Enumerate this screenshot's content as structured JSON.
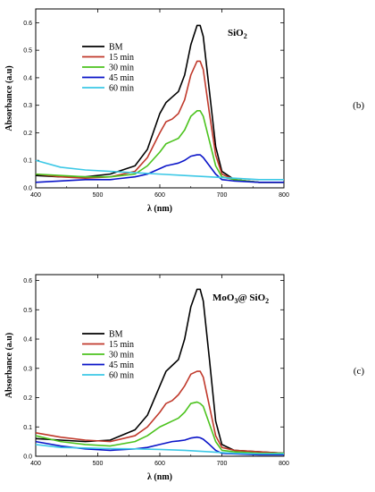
{
  "chart_data": [
    {
      "type": "line",
      "panel_label": "(b)",
      "title": "SiO",
      "title_sub": "2",
      "xlabel": "λ (nm)",
      "ylabel": "Absorbance (a.u)",
      "xlim": [
        400,
        800
      ],
      "ylim": [
        0,
        0.65
      ],
      "xticks": [
        400,
        500,
        600,
        700,
        800
      ],
      "yticks": [
        0.0,
        0.1,
        0.2,
        0.3,
        0.4,
        0.5,
        0.6
      ],
      "ytick_labels": [
        "0.0",
        "0.1",
        "0.2",
        "0.3",
        "0.4",
        "0.5",
        "0.6"
      ],
      "legend_position": "top-left",
      "series": [
        {
          "name": "BM",
          "color": "#000000",
          "x": [
            400,
            440,
            480,
            520,
            560,
            580,
            600,
            610,
            620,
            630,
            640,
            650,
            660,
            665,
            670,
            680,
            690,
            700,
            720,
            760,
            800
          ],
          "y": [
            0.045,
            0.04,
            0.04,
            0.05,
            0.08,
            0.14,
            0.27,
            0.31,
            0.33,
            0.35,
            0.41,
            0.52,
            0.59,
            0.59,
            0.55,
            0.35,
            0.15,
            0.06,
            0.03,
            0.02,
            0.02
          ]
        },
        {
          "name": "15 min",
          "color": "#c0392b",
          "x": [
            400,
            440,
            480,
            520,
            560,
            580,
            600,
            610,
            620,
            630,
            640,
            650,
            660,
            665,
            670,
            680,
            690,
            700,
            720,
            760,
            800
          ],
          "y": [
            0.05,
            0.04,
            0.035,
            0.04,
            0.06,
            0.11,
            0.2,
            0.24,
            0.25,
            0.27,
            0.32,
            0.41,
            0.46,
            0.46,
            0.43,
            0.27,
            0.12,
            0.05,
            0.03,
            0.02,
            0.02
          ]
        },
        {
          "name": "30 min",
          "color": "#4cc31e",
          "x": [
            400,
            440,
            480,
            520,
            560,
            580,
            600,
            610,
            620,
            630,
            640,
            650,
            660,
            665,
            670,
            680,
            690,
            700,
            720,
            760,
            800
          ],
          "y": [
            0.05,
            0.045,
            0.04,
            0.04,
            0.05,
            0.08,
            0.13,
            0.16,
            0.17,
            0.18,
            0.21,
            0.26,
            0.28,
            0.28,
            0.26,
            0.17,
            0.08,
            0.04,
            0.03,
            0.02,
            0.02
          ]
        },
        {
          "name": "45 min",
          "color": "#0a14c8",
          "x": [
            400,
            440,
            480,
            520,
            560,
            580,
            600,
            610,
            620,
            630,
            640,
            650,
            660,
            665,
            670,
            680,
            690,
            700,
            720,
            760,
            800
          ],
          "y": [
            0.02,
            0.025,
            0.03,
            0.03,
            0.04,
            0.05,
            0.07,
            0.08,
            0.085,
            0.09,
            0.1,
            0.115,
            0.12,
            0.12,
            0.11,
            0.08,
            0.05,
            0.03,
            0.025,
            0.02,
            0.02
          ]
        },
        {
          "name": "60 min",
          "color": "#3cc8e6",
          "x": [
            400,
            440,
            480,
            520,
            560,
            600,
            640,
            680,
            720,
            760,
            800
          ],
          "y": [
            0.1,
            0.075,
            0.065,
            0.06,
            0.055,
            0.05,
            0.045,
            0.04,
            0.035,
            0.03,
            0.03
          ]
        }
      ]
    },
    {
      "type": "line",
      "panel_label": "(c)",
      "title": "MoO",
      "title_sub": "3",
      "title_tail": "@ SiO",
      "title_tail_sub": "2",
      "xlabel": "λ (nm)",
      "ylabel": "Absorbance (a.u)",
      "xlim": [
        400,
        800
      ],
      "ylim": [
        0,
        0.62
      ],
      "xticks": [
        400,
        500,
        600,
        700,
        800
      ],
      "yticks": [
        0.0,
        0.1,
        0.2,
        0.3,
        0.4,
        0.5,
        0.6
      ],
      "ytick_labels": [
        "0.0",
        "0.1",
        "0.2",
        "0.3",
        "0.4",
        "0.5",
        "0.6"
      ],
      "legend_position": "center-left",
      "series": [
        {
          "name": "BM",
          "color": "#000000",
          "x": [
            400,
            440,
            480,
            520,
            560,
            580,
            600,
            610,
            620,
            630,
            640,
            650,
            660,
            665,
            670,
            680,
            690,
            700,
            720,
            760,
            800
          ],
          "y": [
            0.06,
            0.055,
            0.05,
            0.055,
            0.09,
            0.14,
            0.24,
            0.29,
            0.31,
            0.33,
            0.4,
            0.51,
            0.57,
            0.57,
            0.53,
            0.33,
            0.12,
            0.04,
            0.02,
            0.015,
            0.01
          ]
        },
        {
          "name": "15 min",
          "color": "#c0392b",
          "x": [
            400,
            440,
            480,
            520,
            560,
            580,
            600,
            610,
            620,
            630,
            640,
            650,
            660,
            665,
            670,
            680,
            690,
            700,
            720,
            760,
            800
          ],
          "y": [
            0.08,
            0.065,
            0.055,
            0.05,
            0.07,
            0.1,
            0.15,
            0.18,
            0.19,
            0.21,
            0.24,
            0.28,
            0.29,
            0.29,
            0.27,
            0.17,
            0.07,
            0.03,
            0.02,
            0.015,
            0.01
          ]
        },
        {
          "name": "30 min",
          "color": "#4cc31e",
          "x": [
            400,
            440,
            480,
            520,
            560,
            580,
            600,
            610,
            620,
            630,
            640,
            650,
            660,
            665,
            670,
            680,
            690,
            700,
            720,
            760,
            800
          ],
          "y": [
            0.07,
            0.05,
            0.04,
            0.035,
            0.05,
            0.07,
            0.1,
            0.11,
            0.12,
            0.13,
            0.15,
            0.18,
            0.185,
            0.18,
            0.17,
            0.11,
            0.05,
            0.02,
            0.015,
            0.01,
            0.01
          ]
        },
        {
          "name": "45 min",
          "color": "#0a14c8",
          "x": [
            400,
            440,
            480,
            520,
            560,
            580,
            600,
            610,
            620,
            630,
            640,
            650,
            660,
            665,
            670,
            680,
            690,
            700,
            720,
            760,
            800
          ],
          "y": [
            0.05,
            0.035,
            0.025,
            0.02,
            0.025,
            0.03,
            0.04,
            0.045,
            0.05,
            0.052,
            0.055,
            0.062,
            0.065,
            0.063,
            0.058,
            0.04,
            0.02,
            0.01,
            0.008,
            0.005,
            0.005
          ]
        },
        {
          "name": "60 min",
          "color": "#3cc8e6",
          "x": [
            400,
            440,
            480,
            520,
            560,
            600,
            640,
            680,
            720,
            760,
            800
          ],
          "y": [
            0.04,
            0.03,
            0.028,
            0.026,
            0.025,
            0.023,
            0.02,
            0.015,
            0.01,
            0.008,
            0.008
          ]
        }
      ]
    }
  ]
}
